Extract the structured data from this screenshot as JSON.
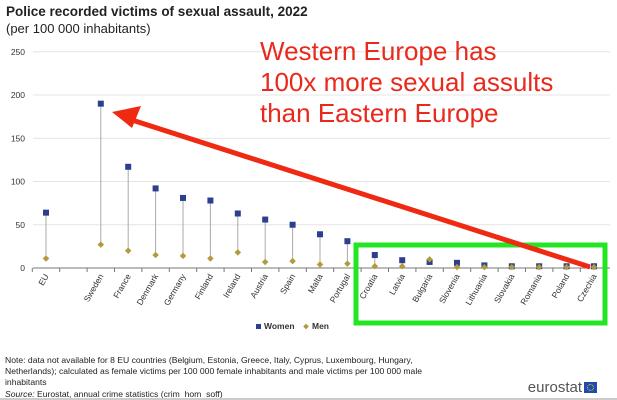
{
  "title": "Police recorded victims of sexual assault, 2022",
  "subtitle": "(per 100 000 inhabitants)",
  "annotation": [
    "Western Europe has",
    "100x more sexual assults",
    "than Eastern Europe"
  ],
  "note": "Note: data not available for 8 EU countries (Belgium, Estonia, Greece, Italy, Cyprus, Luxembourg, Hungary, Netherlands); calculated as female victims per 100 000 female inhabitants and male victims per 100 000 male inhabitants",
  "source_label": "Source:",
  "source_text": " Eurostat, annual crime statistics (crim_hom_soff)",
  "logo": "eurostat",
  "colors": {
    "women": "#2b3f8e",
    "men": "#b39a3e",
    "arrow": "#f02a12",
    "box": "#22e622"
  },
  "chart_data": {
    "type": "scatter",
    "title": "Police recorded victims of sexual assault, 2022",
    "subtitle": "(per 100 000 inhabitants)",
    "ylim": [
      0,
      250
    ],
    "yticks": [
      "0",
      "50",
      "100",
      "150",
      "200",
      "250"
    ],
    "grid": true,
    "legend_position": "bottom-center",
    "categories": [
      "EU",
      "",
      "Sweden",
      "France",
      "Denmark",
      "Germany",
      "Finland",
      "Ireland",
      "Austria",
      "Spain",
      "Malta",
      "Portugal",
      "Croatia",
      "Latvia",
      "Bulgaria",
      "Slovenia",
      "Lithuania",
      "Slovakia",
      "Romania",
      "Poland",
      "Czechia"
    ],
    "series": [
      {
        "name": "Women",
        "values": [
          64,
          null,
          190,
          117,
          92,
          81,
          78,
          63,
          56,
          50,
          39,
          31,
          15,
          9,
          7,
          6,
          3,
          2,
          2,
          2,
          2
        ]
      },
      {
        "name": "Men",
        "values": [
          11,
          null,
          27,
          20,
          15,
          14,
          11,
          18,
          7,
          8,
          4,
          5,
          2,
          2,
          10,
          1,
          1,
          1,
          1,
          1,
          1
        ]
      }
    ]
  }
}
